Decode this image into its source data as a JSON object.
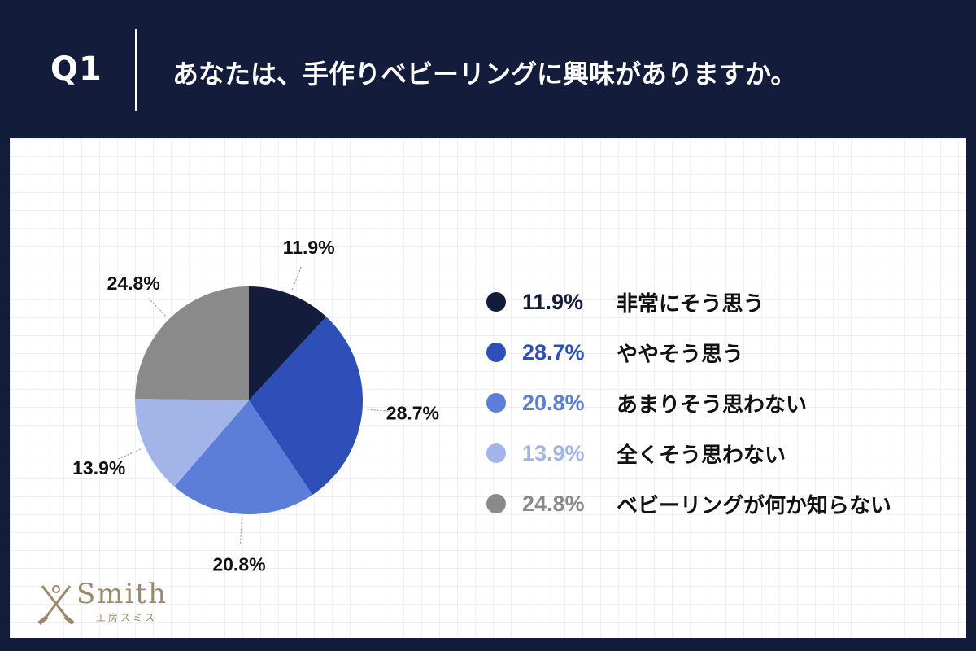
{
  "header": {
    "question_number": "Q1",
    "question_text": "あなたは、手作りベビーリングに興味がありますか。"
  },
  "chart_data": {
    "type": "pie",
    "title": "",
    "slices": [
      {
        "label": "非常にそう思う",
        "value": 11.9,
        "display": "11.9%",
        "color": "#141c3b"
      },
      {
        "label": "ややそう思う",
        "value": 28.7,
        "display": "28.7%",
        "color": "#2f4fb8"
      },
      {
        "label": "あまりそう思わない",
        "value": 20.8,
        "display": "20.8%",
        "color": "#5c7ed8"
      },
      {
        "label": "全くそう思わない",
        "value": 13.9,
        "display": "13.9%",
        "color": "#a3b5e8"
      },
      {
        "label": "ベビーリングが何か知らない",
        "value": 24.8,
        "display": "24.8%",
        "color": "#8a8a8a"
      }
    ],
    "legend_position": "right"
  },
  "logo": {
    "name": "Smith",
    "subtitle": "工房スミス"
  }
}
